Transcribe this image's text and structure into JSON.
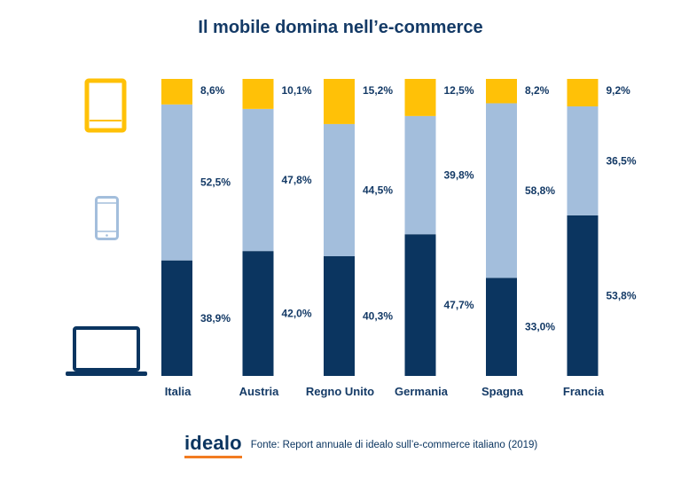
{
  "title": "Il mobile domina nell’e-commerce",
  "footer": {
    "logo_text": "idealo",
    "source": "Fonte: Report annuale di idealo sull’e-commerce italiano (2019)"
  },
  "icons": [
    "tablet-icon",
    "smartphone-icon",
    "laptop-icon"
  ],
  "colors": {
    "tablet": "#ffc107",
    "smartphone": "#a3bedc",
    "desktop": "#0b3560",
    "label": "#143a66"
  },
  "chart_data": {
    "type": "bar",
    "stacked": true,
    "percent": true,
    "title": "Il mobile domina nell’e-commerce",
    "categories": [
      "Italia",
      "Austria",
      "Regno Unito",
      "Germania",
      "Spagna",
      "Francia"
    ],
    "series": [
      {
        "key": "desktop",
        "values": [
          38.9,
          42.0,
          40.3,
          47.7,
          33.0,
          53.8
        ],
        "labels": [
          "38,9%",
          "42,0%",
          "40,3%",
          "47,7%",
          "33,0%",
          "53,8%"
        ],
        "color": "#0b3560",
        "icon": "laptop-icon"
      },
      {
        "key": "smartphone",
        "values": [
          52.5,
          47.8,
          44.5,
          39.8,
          58.8,
          36.5
        ],
        "labels": [
          "52,5%",
          "47,8%",
          "44,5%",
          "39,8%",
          "58,8%",
          "36,5%"
        ],
        "color": "#a3bedc",
        "icon": "smartphone-icon"
      },
      {
        "key": "tablet",
        "values": [
          8.6,
          10.1,
          15.2,
          12.5,
          8.2,
          9.2
        ],
        "labels": [
          "8,6%",
          "10,1%",
          "15,2%",
          "12,5%",
          "8,2%",
          "9,2%"
        ],
        "color": "#ffc107",
        "icon": "tablet-icon"
      }
    ],
    "ylim": [
      0,
      100
    ],
    "legend": "left-icons"
  }
}
